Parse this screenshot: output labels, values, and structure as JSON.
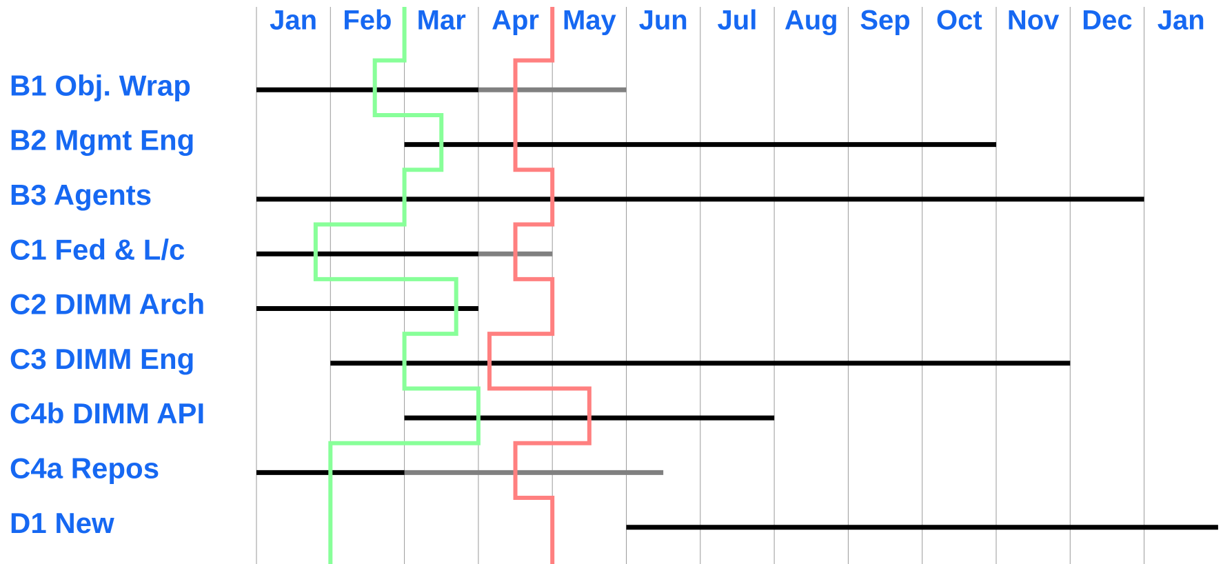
{
  "chart_data": {
    "type": "gantt",
    "months": [
      "Jan",
      "Feb",
      "Mar",
      "Apr",
      "May",
      "Jun",
      "Jul",
      "Aug",
      "Sep",
      "Oct",
      "Nov",
      "Dec",
      "Jan"
    ],
    "xlim": [
      0,
      13
    ],
    "xticks": [
      0,
      1,
      2,
      3,
      4,
      5,
      6,
      7,
      8,
      9,
      10,
      11,
      12
    ],
    "grid": true,
    "categories": [
      null,
      "B1 Obj. Wrap",
      "B2 Mgmt Eng",
      "B3 Agents",
      "C1 Fed & L/c",
      "C2 DIMM Arch",
      "C3 DIMM Eng",
      "C4b DIMM API",
      "C4a Repos",
      "D1 New"
    ],
    "bars": {
      "color": "#000000",
      "start": [
        null,
        0,
        2,
        0,
        0,
        0,
        1,
        2,
        0,
        5
      ],
      "end": [
        null,
        3,
        10,
        12,
        3,
        3,
        11,
        7,
        2,
        13
      ]
    },
    "extensions": {
      "color": "#808080",
      "start": [
        null,
        3,
        null,
        null,
        3,
        null,
        null,
        null,
        2,
        null
      ],
      "end": [
        null,
        5,
        null,
        null,
        4,
        null,
        null,
        null,
        5.5,
        null
      ]
    },
    "lines": [
      {
        "color": "#88ff99",
        "values": [
          2,
          1.6,
          2.5,
          2,
          0.8,
          2.7,
          2,
          3,
          1,
          1
        ]
      },
      {
        "color": "#ff8080",
        "values": [
          4,
          3.5,
          3.5,
          4,
          3.5,
          4,
          3.15,
          4.5,
          3.5,
          4
        ]
      }
    ]
  }
}
